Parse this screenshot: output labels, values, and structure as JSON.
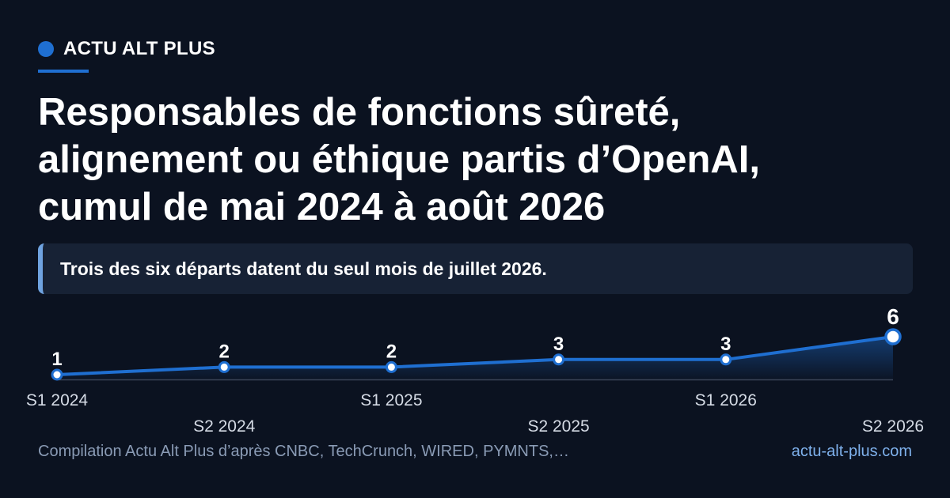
{
  "brand": {
    "name": "ACTU ALT PLUS"
  },
  "title_lines": [
    "Responsables de fonctions sûreté,",
    "alignement ou éthique partis d’OpenAI,",
    "cumul de mai 2024 à août 2026"
  ],
  "callout": {
    "text": "Trois des six départs datent du seul mois de juillet 2026."
  },
  "footer": {
    "source": "Compilation Actu Alt Plus d’après CNBC, TechCrunch, WIRED, PYMNTS,…",
    "site": "actu-alt-plus.com"
  },
  "colors": {
    "background": "#0b1220",
    "accent": "#1f6fd1",
    "callout_bg": "#172235",
    "callout_border": "#6fa3e0",
    "muted_text": "#8a9bb5",
    "link_text": "#7fb1ec"
  },
  "chart_data": {
    "type": "line",
    "categories": [
      "S1 2024",
      "S2 2024",
      "S1 2025",
      "S2 2025",
      "S1 2026",
      "S2 2026"
    ],
    "values": [
      1,
      2,
      2,
      3,
      3,
      6
    ],
    "data_labels": [
      "1",
      "2",
      "2",
      "3",
      "3",
      "6"
    ],
    "ylim": [
      0,
      6
    ],
    "grid": false,
    "area_fill": true,
    "highlight_last": true
  }
}
